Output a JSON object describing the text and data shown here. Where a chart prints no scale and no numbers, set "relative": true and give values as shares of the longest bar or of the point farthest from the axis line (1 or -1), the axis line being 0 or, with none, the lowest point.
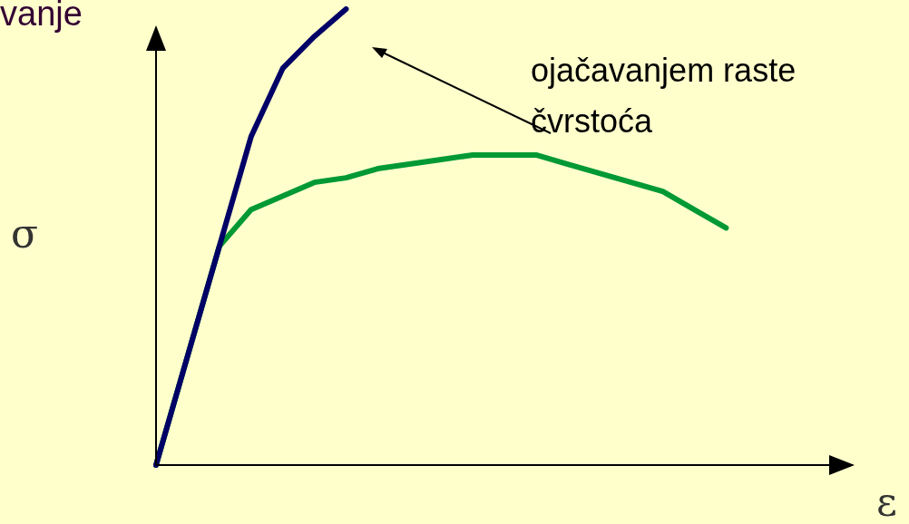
{
  "chart_data": {
    "type": "line",
    "title": "vanje",
    "xlabel": "ε",
    "ylabel": "σ",
    "annotations": [
      "ojačavanjem raste čvrstoća"
    ],
    "relative": true,
    "marker": "none",
    "categories": [
      null,
      null,
      null,
      null,
      null,
      null,
      null,
      null,
      null,
      null,
      null,
      null,
      null,
      null,
      null,
      null,
      null,
      null,
      null,
      null,
      null,
      null,
      null
    ],
    "series": [
      {
        "color": "#000066",
        "values": [
          0,
          0.24,
          0.48,
          0.72,
          0.87,
          0.94,
          1.0,
          null,
          null,
          null,
          null,
          null,
          null,
          null,
          null,
          null,
          null,
          null,
          null,
          null,
          null,
          null,
          null
        ]
      },
      {
        "color": "#009933",
        "values": [
          0,
          0.24,
          0.48,
          0.56,
          0.59,
          0.62,
          0.63,
          0.65,
          0.66,
          0.67,
          0.68,
          0.68,
          0.68,
          0.66,
          0.64,
          0.62,
          0.6,
          0.56,
          0.52,
          null,
          null,
          null,
          null
        ]
      }
    ]
  }
}
